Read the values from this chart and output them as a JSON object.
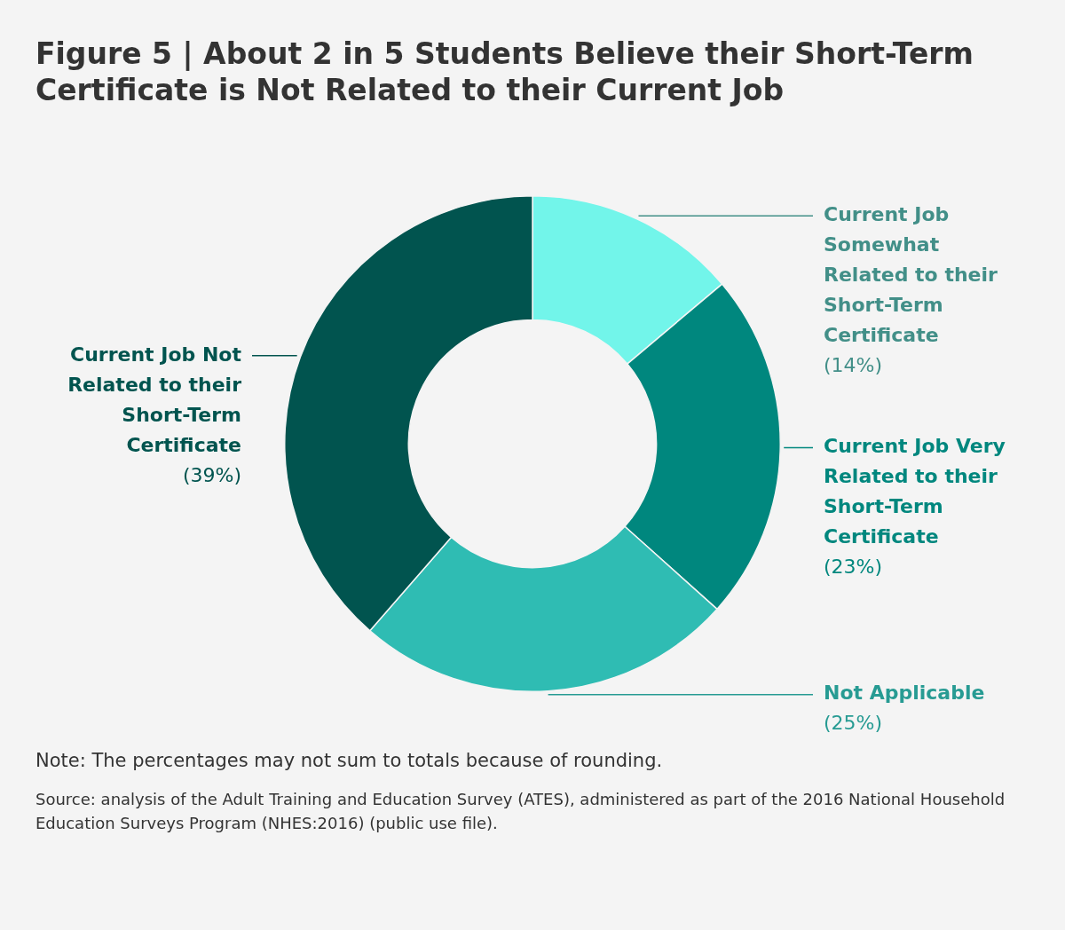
{
  "chart_data": {
    "type": "donut",
    "title": "Figure 5 | About 2 in 5 Students Believe their Short-Term Certificate is Not Related to their Current Job",
    "categories": [
      "Current Job Somewhat Related to their Short-Term Certificate",
      "Current Job Very Related to their Short-Term Certificate",
      "Not Applicable",
      "Current Job Not Related to their Short-Term Certificate"
    ],
    "values": [
      14,
      23,
      25,
      39
    ],
    "value_labels": [
      "(14%)",
      "(23%)",
      "(25%)",
      "(39%)"
    ],
    "colors": [
      "#72f5ea",
      "#00877e",
      "#2fbcb3",
      "#01544f"
    ],
    "legend": false,
    "annotations": [
      "Note: The percentages may not sum to totals because of rounding.",
      "Source: analysis of the Adult Training and Education Survey (ATES), administered as part of the 2016 National Household Education Surveys Program (NHES:2016) (public use file)."
    ]
  }
}
